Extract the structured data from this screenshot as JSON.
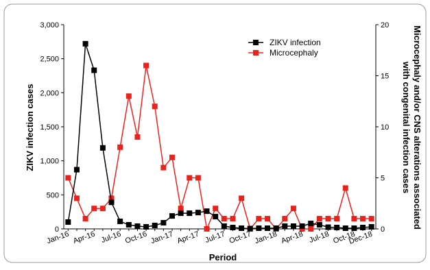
{
  "chart_data": {
    "type": "line",
    "xlabel": "Period",
    "ylabel_left": "ZIKV infection cases",
    "ylabel_right_line1": "Microcephaly and/or CNS alterations associated",
    "ylabel_right_line2": "with congenital infection cases",
    "ylim_left": [
      0,
      3000
    ],
    "ylim_right": [
      0,
      20
    ],
    "yticks_left": [
      "0",
      "500",
      "1,000",
      "1,500",
      "2,000",
      "2,500",
      "3,000"
    ],
    "yticks_right": [
      "0",
      "5",
      "10",
      "15",
      "20"
    ],
    "x_tick_labels": [
      "Jan-16",
      "Apr-16",
      "Jul-16",
      "Oct-16",
      "Jan-17",
      "Apr-17",
      "Jul-17",
      "Oct-17",
      "Jan-18",
      "Apr-18",
      "Jul-18",
      "Oct-18",
      "Dec-18"
    ],
    "x_tick_index": [
      0,
      3,
      6,
      9,
      12,
      15,
      18,
      21,
      24,
      27,
      30,
      33,
      35
    ],
    "grid": false,
    "legend_position": "top-right",
    "series": [
      {
        "name": "ZIKV infection",
        "axis": "left",
        "color": "#000000",
        "values": [
          100,
          870,
          2720,
          2330,
          1190,
          390,
          110,
          60,
          40,
          30,
          50,
          90,
          190,
          230,
          230,
          240,
          260,
          180,
          40,
          20,
          10,
          5,
          10,
          10,
          10,
          40,
          40,
          40,
          80,
          60,
          25,
          20,
          10,
          10,
          20,
          30
        ]
      },
      {
        "name": "Microcephaly",
        "axis": "right",
        "color": "#e8231d",
        "values": [
          5,
          3,
          1,
          2,
          2,
          3,
          8,
          13,
          9,
          16,
          12,
          6,
          7,
          2,
          5,
          5,
          0,
          2,
          1,
          1,
          3,
          0,
          1,
          1,
          0,
          1,
          2,
          0,
          0,
          1,
          1,
          1,
          4,
          1,
          1,
          1
        ]
      }
    ]
  }
}
